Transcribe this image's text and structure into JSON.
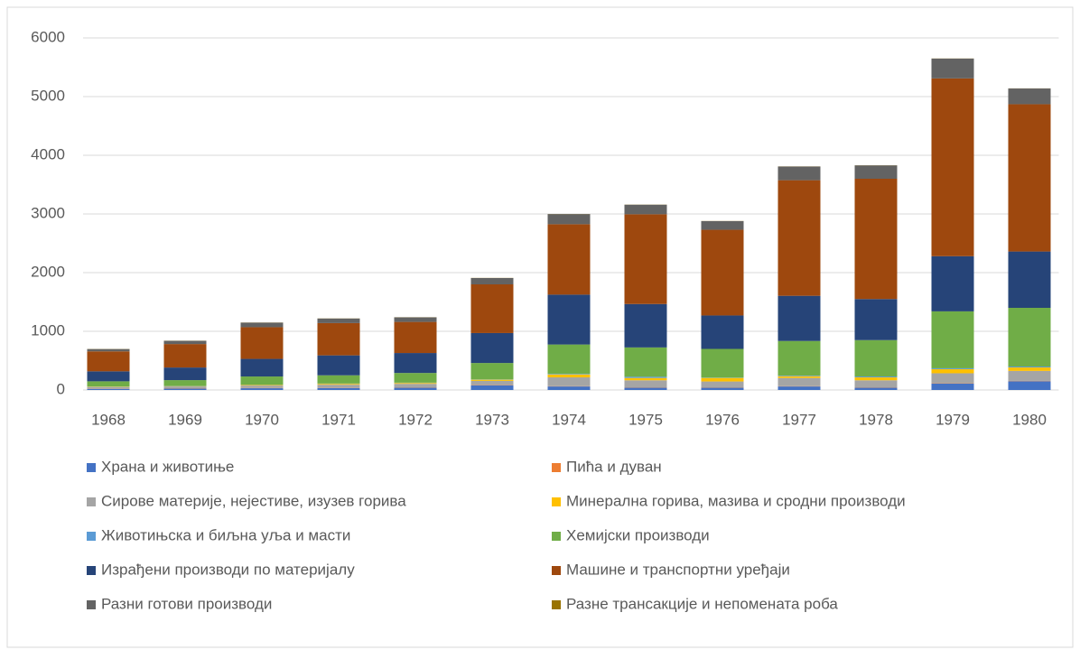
{
  "chart_data": {
    "type": "stacked_bar",
    "categories": [
      "1968",
      "1969",
      "1970",
      "1971",
      "1972",
      "1973",
      "1974",
      "1975",
      "1976",
      "1977",
      "1978",
      "1979",
      "1980"
    ],
    "series": [
      {
        "name": "Храна и животиње",
        "color": "#4472c4",
        "values": [
          20,
          25,
          30,
          35,
          40,
          80,
          60,
          40,
          40,
          60,
          40,
          110,
          150
        ]
      },
      {
        "name": "Пића и дуван",
        "color": "#ed7d31",
        "values": [
          5,
          5,
          5,
          5,
          5,
          5,
          5,
          5,
          5,
          5,
          5,
          5,
          5
        ]
      },
      {
        "name": "Сирове материје, нејестиве, изузев горива",
        "color": "#a5a5a5",
        "values": [
          25,
          30,
          40,
          50,
          60,
          70,
          150,
          120,
          100,
          140,
          120,
          170,
          170
        ]
      },
      {
        "name": "Минерална горива, мазива и сродни производи",
        "color": "#ffc000",
        "values": [
          5,
          5,
          10,
          15,
          15,
          20,
          50,
          40,
          60,
          30,
          50,
          70,
          60
        ]
      },
      {
        "name": "Животињска и биљна уља и масти",
        "color": "#5b9bd5",
        "values": [
          3,
          3,
          5,
          5,
          5,
          5,
          10,
          20,
          5,
          10,
          15,
          15,
          15
        ]
      },
      {
        "name": "Хемијски производи",
        "color": "#70ad47",
        "values": [
          90,
          100,
          140,
          140,
          165,
          280,
          500,
          500,
          490,
          590,
          620,
          970,
          1000
        ]
      },
      {
        "name": "Израђени производи по материјалу",
        "color": "#264478",
        "values": [
          170,
          215,
          300,
          340,
          340,
          510,
          850,
          740,
          570,
          770,
          700,
          940,
          960
        ]
      },
      {
        "name": "Машине и транспортни уређаји",
        "color": "#9e480e",
        "values": [
          340,
          400,
          540,
          550,
          530,
          830,
          1200,
          1530,
          1460,
          1970,
          2050,
          3030,
          2510
        ]
      },
      {
        "name": "Разни готови производи",
        "color": "#636363",
        "values": [
          40,
          55,
          78,
          78,
          78,
          108,
          173,
          163,
          148,
          233,
          228,
          338,
          268
        ]
      },
      {
        "name": "Разне трансакције и непомената роба",
        "color": "#997300",
        "values": [
          2,
          2,
          2,
          2,
          2,
          2,
          2,
          2,
          2,
          2,
          2,
          2,
          2
        ]
      }
    ],
    "ylim": [
      0,
      6000
    ],
    "yticks": [
      0,
      1000,
      2000,
      3000,
      4000,
      5000,
      6000
    ],
    "grid": true,
    "legend": "bottom"
  }
}
